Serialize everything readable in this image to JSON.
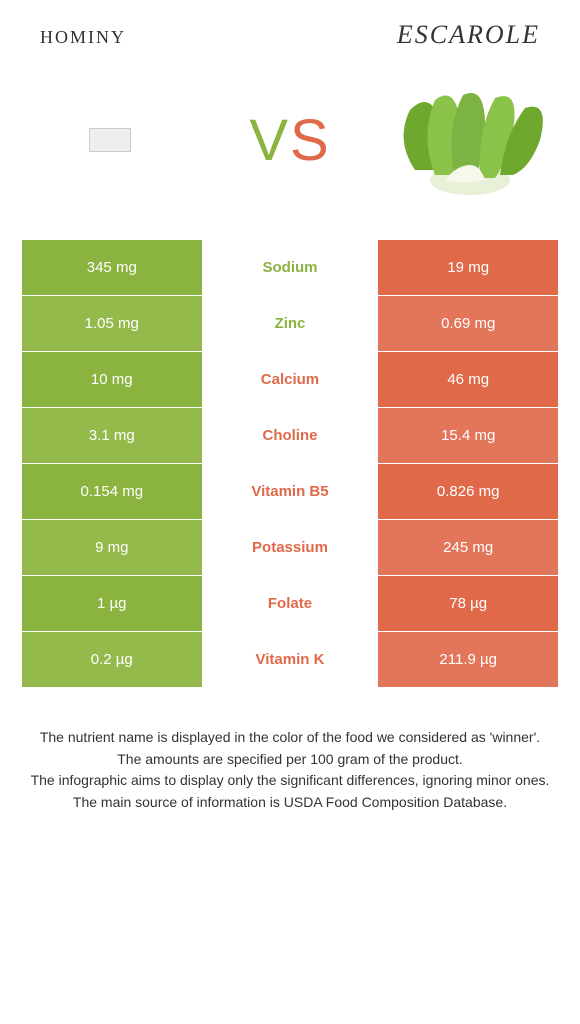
{
  "colors": {
    "green": "#8bb340",
    "orange": "#e0694a",
    "green_alt": "#94ba4c",
    "orange_alt": "#e2755a",
    "text_mid_green": "#8bb340",
    "text_mid_orange": "#e0694a"
  },
  "left_food": "hominy",
  "right_food": "Escarole",
  "vs_v": "V",
  "vs_s": "S",
  "nutrients": [
    {
      "name": "Sodium",
      "left": "345 mg",
      "right": "19 mg",
      "winner": "left"
    },
    {
      "name": "Zinc",
      "left": "1.05 mg",
      "right": "0.69 mg",
      "winner": "left"
    },
    {
      "name": "Calcium",
      "left": "10 mg",
      "right": "46 mg",
      "winner": "right"
    },
    {
      "name": "Choline",
      "left": "3.1 mg",
      "right": "15.4 mg",
      "winner": "right"
    },
    {
      "name": "Vitamin B5",
      "left": "0.154 mg",
      "right": "0.826 mg",
      "winner": "right"
    },
    {
      "name": "Potassium",
      "left": "9 mg",
      "right": "245 mg",
      "winner": "right"
    },
    {
      "name": "Folate",
      "left": "1 µg",
      "right": "78 µg",
      "winner": "right"
    },
    {
      "name": "Vitamin K",
      "left": "0.2 µg",
      "right": "211.9 µg",
      "winner": "right"
    }
  ],
  "footer": [
    "The nutrient name is displayed in the color of the food we considered as 'winner'.",
    "The amounts are specified per 100 gram of the product.",
    "The infographic aims to display only the significant differences, ignoring minor ones.",
    "The main source of information is USDA Food Composition Database."
  ]
}
